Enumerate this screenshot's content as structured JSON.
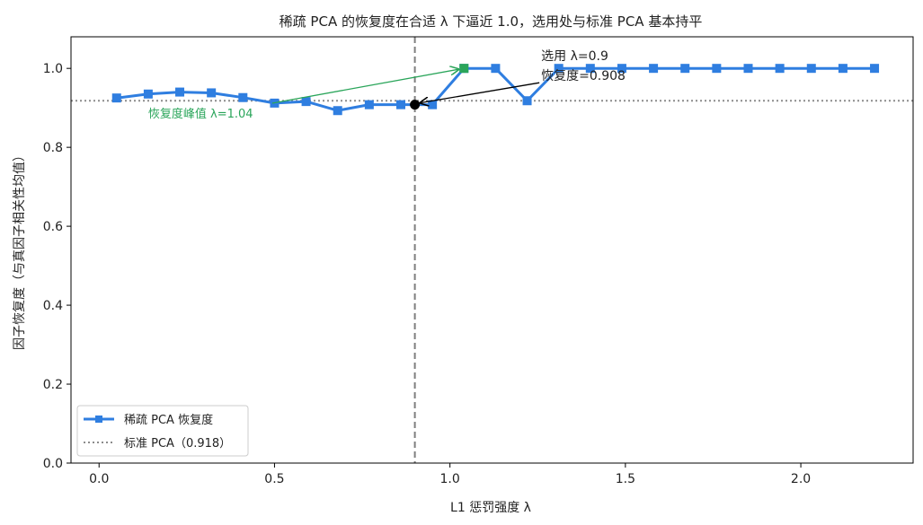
{
  "chart_data": {
    "type": "line",
    "title": "稀疏 PCA 的恢复度在合适 λ 下逼近 1.0，选用处与标准 PCA 基本持平",
    "xlabel": "L1 惩罚强度 λ",
    "ylabel": "因子恢复度（与真因子相关性均值）",
    "xlim": [
      -0.08,
      2.32
    ],
    "ylim": [
      0.0,
      1.08
    ],
    "x_ticks": [
      {
        "value": 0.0,
        "label": "0.0"
      },
      {
        "value": 0.5,
        "label": "0.5"
      },
      {
        "value": 1.0,
        "label": "1.0"
      },
      {
        "value": 1.5,
        "label": "1.5"
      },
      {
        "value": 2.0,
        "label": "2.0"
      }
    ],
    "y_ticks": [
      {
        "value": 0.0,
        "label": "0.0"
      },
      {
        "value": 0.2,
        "label": "0.2"
      },
      {
        "value": 0.4,
        "label": "0.4"
      },
      {
        "value": 0.6,
        "label": "0.6"
      },
      {
        "value": 0.8,
        "label": "0.8"
      },
      {
        "value": 1.0,
        "label": "1.0"
      }
    ],
    "grid": false,
    "legend_position": "lower-left",
    "series": [
      {
        "name": "稀疏 PCA 恢复度",
        "color": "#2f7ee0",
        "marker": "square",
        "x": [
          0.05,
          0.14,
          0.23,
          0.32,
          0.41,
          0.5,
          0.59,
          0.68,
          0.77,
          0.86,
          0.95,
          1.04,
          1.13,
          1.22,
          1.31,
          1.4,
          1.49,
          1.58,
          1.67,
          1.76,
          1.85,
          1.94,
          2.03,
          2.12,
          2.21
        ],
        "y": [
          0.925,
          0.935,
          0.94,
          0.938,
          0.926,
          0.912,
          0.916,
          0.893,
          0.908,
          0.908,
          0.908,
          1.0,
          1.0,
          0.918,
          1.0,
          1.0,
          1.0,
          1.0,
          1.0,
          1.0,
          1.0,
          1.0,
          1.0,
          1.0,
          1.0
        ]
      }
    ],
    "reference_lines": [
      {
        "name": "标准 PCA（0.918）",
        "orientation": "horizontal",
        "value": 0.918,
        "color": "#8c8c8c",
        "style": "dotted"
      },
      {
        "orientation": "vertical",
        "value": 0.9,
        "color": "#7f7f7f",
        "style": "dashed"
      }
    ],
    "highlights": [
      {
        "x": 0.9,
        "y": 0.908,
        "color": "#000000",
        "marker": "circle"
      },
      {
        "x": 1.04,
        "y": 1.0,
        "color": "#2aa55a",
        "marker": "square"
      }
    ],
    "annotations": [
      {
        "lines": [
          "选用 λ=0.9",
          "恢复度=0.908"
        ],
        "x": 1.26,
        "y": 1.0,
        "target_x": 0.9,
        "target_y": 0.908,
        "color": "#000000"
      },
      {
        "lines": [
          "恢复度峰值 λ=1.04"
        ],
        "x": 0.14,
        "y": 0.88,
        "target_x": 1.04,
        "target_y": 1.0,
        "color": "#2aa55a"
      }
    ]
  }
}
